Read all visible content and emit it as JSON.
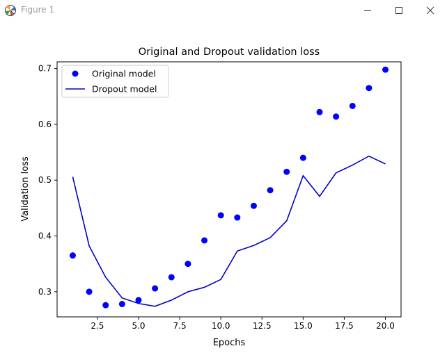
{
  "window": {
    "title": "Figure 1",
    "icons": {
      "app": "matplotlib-figure-icon",
      "minimize": "minimize-icon",
      "maximize": "maximize-icon",
      "close": "close-icon"
    }
  },
  "chart_data": {
    "type": "line",
    "title": "Original and Dropout validation loss",
    "xlabel": "Epochs",
    "ylabel": "Validation loss",
    "xlim": [
      0.05,
      20.95
    ],
    "ylim": [
      0.255,
      0.712
    ],
    "xticks": [
      2.5,
      5.0,
      7.5,
      10.0,
      12.5,
      15.0,
      17.5,
      20.0
    ],
    "xtick_labels": [
      "2.5",
      "5.0",
      "7.5",
      "10.0",
      "12.5",
      "15.0",
      "17.5",
      "20.0"
    ],
    "yticks": [
      0.3,
      0.4,
      0.5,
      0.6,
      0.7
    ],
    "ytick_labels": [
      "0.3",
      "0.4",
      "0.5",
      "0.6",
      "0.7"
    ],
    "grid": false,
    "legend_position": "top-left",
    "x": [
      1,
      2,
      3,
      4,
      5,
      6,
      7,
      8,
      9,
      10,
      11,
      12,
      13,
      14,
      15,
      16,
      17,
      18,
      19,
      20
    ],
    "series": [
      {
        "name": "Original model",
        "style": "markers",
        "color": "#0000ff",
        "values": [
          0.365,
          0.3,
          0.276,
          0.278,
          0.285,
          0.306,
          0.326,
          0.35,
          0.392,
          0.437,
          0.433,
          0.454,
          0.482,
          0.515,
          0.54,
          0.622,
          0.614,
          0.633,
          0.665,
          0.698
        ]
      },
      {
        "name": "Dropout model",
        "style": "line",
        "color": "#0000cc",
        "values": [
          0.506,
          0.382,
          0.326,
          0.289,
          0.279,
          0.274,
          0.285,
          0.3,
          0.308,
          0.322,
          0.373,
          0.383,
          0.397,
          0.427,
          0.508,
          0.471,
          0.513,
          0.527,
          0.543,
          0.529
        ]
      }
    ]
  }
}
